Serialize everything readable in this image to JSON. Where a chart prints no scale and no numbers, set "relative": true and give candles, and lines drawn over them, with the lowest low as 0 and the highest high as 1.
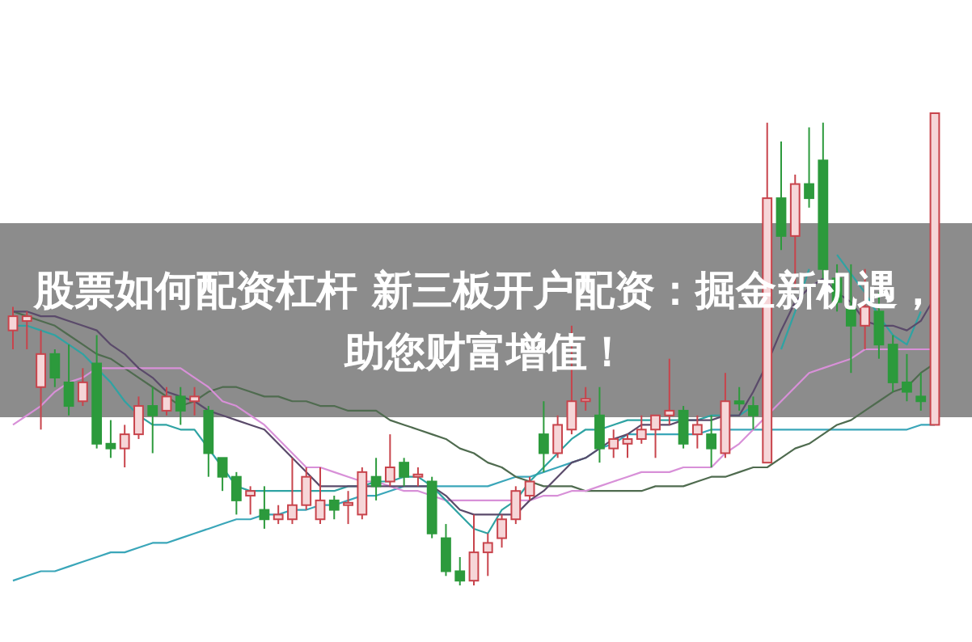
{
  "chart_data": {
    "type": "candlestick",
    "title": "股票如何配资杠杆 新三板开户配资：掘金新机遇，助您财富增值！",
    "relative": true,
    "categories": [
      null,
      null,
      null,
      null,
      null,
      null,
      null,
      null,
      null,
      null,
      null,
      null,
      null,
      null,
      null,
      null,
      null,
      null,
      null,
      null,
      null,
      null,
      null,
      null,
      null,
      null,
      null,
      null,
      null,
      null,
      null,
      null,
      null,
      null,
      null,
      null,
      null,
      null,
      null,
      null,
      null,
      null,
      null,
      null,
      null,
      null,
      null,
      null,
      null,
      null,
      null,
      null,
      null,
      null,
      null,
      null,
      null,
      null,
      null,
      null,
      null,
      null,
      null,
      null,
      null,
      null,
      null
    ],
    "ohlc": [
      [
        0.54,
        0.59,
        0.5,
        0.57
      ],
      [
        0.56,
        0.58,
        0.5,
        0.57
      ],
      [
        0.42,
        0.54,
        0.33,
        0.49
      ],
      [
        0.49,
        0.5,
        0.42,
        0.44
      ],
      [
        0.43,
        0.51,
        0.36,
        0.38
      ],
      [
        0.39,
        0.46,
        0.38,
        0.43
      ],
      [
        0.47,
        0.53,
        0.29,
        0.3
      ],
      [
        0.3,
        0.35,
        0.27,
        0.29
      ],
      [
        0.29,
        0.34,
        0.25,
        0.32
      ],
      [
        0.32,
        0.4,
        0.31,
        0.38
      ],
      [
        0.38,
        0.42,
        0.28,
        0.36
      ],
      [
        0.37,
        0.42,
        0.36,
        0.4
      ],
      [
        0.4,
        0.42,
        0.34,
        0.37
      ],
      [
        0.39,
        0.42,
        0.36,
        0.4
      ],
      [
        0.37,
        0.38,
        0.23,
        0.28
      ],
      [
        0.27,
        0.27,
        0.2,
        0.23
      ],
      [
        0.23,
        0.24,
        0.15,
        0.18
      ],
      [
        0.19,
        0.21,
        0.15,
        0.2
      ],
      [
        0.16,
        0.21,
        0.12,
        0.14
      ],
      [
        0.14,
        0.17,
        0.13,
        0.15
      ],
      [
        0.14,
        0.27,
        0.13,
        0.17
      ],
      [
        0.17,
        0.25,
        0.16,
        0.23
      ],
      [
        0.14,
        0.25,
        0.13,
        0.18
      ],
      [
        0.18,
        0.19,
        0.14,
        0.16
      ],
      [
        0.17,
        0.2,
        0.13,
        0.175
      ],
      [
        0.15,
        0.25,
        0.14,
        0.24
      ],
      [
        0.23,
        0.27,
        0.18,
        0.21
      ],
      [
        0.22,
        0.32,
        0.21,
        0.25
      ],
      [
        0.26,
        0.27,
        0.21,
        0.23
      ],
      [
        0.23,
        0.25,
        0.21,
        0.235
      ],
      [
        0.22,
        0.23,
        0.1,
        0.11
      ],
      [
        0.1,
        0.13,
        0.02,
        0.03
      ],
      [
        0.03,
        0.06,
        0,
        0.01
      ],
      [
        0.01,
        0.15,
        0,
        0.07
      ],
      [
        0.07,
        0.11,
        0.02,
        0.09
      ],
      [
        0.1,
        0.15,
        0.08,
        0.14
      ],
      [
        0.14,
        0.21,
        0.13,
        0.2
      ],
      [
        0.19,
        0.23,
        0.18,
        0.22
      ],
      [
        0.32,
        0.39,
        0.24,
        0.28
      ],
      [
        0.28,
        0.36,
        0.27,
        0.34
      ],
      [
        0.33,
        0.55,
        0.32,
        0.39
      ],
      [
        0.39,
        0.42,
        0.37,
        0.395
      ],
      [
        0.36,
        0.42,
        0.26,
        0.29
      ],
      [
        0.29,
        0.33,
        0.27,
        0.31
      ],
      [
        0.3,
        0.32,
        0.27,
        0.31
      ],
      [
        0.31,
        0.36,
        0.3,
        0.33
      ],
      [
        0.33,
        0.36,
        0.27,
        0.36
      ],
      [
        0.36,
        0.48,
        0.34,
        0.37
      ],
      [
        0.37,
        0.38,
        0.29,
        0.3
      ],
      [
        0.32,
        0.36,
        0.29,
        0.34
      ],
      [
        0.32,
        0.36,
        0.25,
        0.29
      ],
      [
        0.28,
        0.45,
        0.27,
        0.39
      ],
      [
        0.39,
        0.42,
        0.37,
        0.385
      ],
      [
        0.38,
        0.4,
        0.33,
        0.36
      ],
      [
        0.26,
        0.98,
        0.26,
        0.82
      ],
      [
        0.82,
        0.94,
        0.71,
        0.74
      ],
      [
        0.74,
        0.87,
        0.63,
        0.85
      ],
      [
        0.85,
        0.97,
        0.8,
        0.82
      ],
      [
        0.9,
        0.98,
        0.65,
        0.67
      ],
      [
        0.65,
        0.68,
        0.58,
        0.6
      ],
      [
        0.59,
        0.68,
        0.45,
        0.55
      ],
      [
        0.55,
        0.67,
        0.5,
        0.59
      ],
      [
        0.58,
        0.62,
        0.48,
        0.51
      ],
      [
        0.51,
        0.53,
        0.41,
        0.43
      ],
      [
        0.43,
        0.49,
        0.39,
        0.41
      ],
      [
        0.4,
        0.45,
        0.37,
        0.39
      ],
      [
        0.34,
        1,
        0.34,
        1
      ]
    ],
    "colors": [
      "#c8444c",
      "#c8444c",
      "#c8444c",
      "#2c9a3c",
      "#2c9a3c",
      "#c8444c",
      "#2c9a3c",
      "#2c9a3c",
      "#c8444c",
      "#c8444c",
      "#2c9a3c",
      "#c8444c",
      "#2c9a3c",
      "#c8444c",
      "#2c9a3c",
      "#2c9a3c",
      "#2c9a3c",
      "#c8444c",
      "#2c9a3c",
      "#c8444c",
      "#c8444c",
      "#c8444c",
      "#c8444c",
      "#2c9a3c",
      "#c8444c",
      "#c8444c",
      "#2c9a3c",
      "#c8444c",
      "#2c9a3c",
      "#c8444c",
      "#2c9a3c",
      "#2c9a3c",
      "#2c9a3c",
      "#c8444c",
      "#c8444c",
      "#c8444c",
      "#c8444c",
      "#c8444c",
      "#2c9a3c",
      "#c8444c",
      "#c8444c",
      "#c8444c",
      "#2c9a3c",
      "#c8444c",
      "#c8444c",
      "#c8444c",
      "#c8444c",
      "#c8444c",
      "#2c9a3c",
      "#c8444c",
      "#2c9a3c",
      "#c8444c",
      "#2c9a3c",
      "#2c9a3c",
      "#c8444c",
      "#2c9a3c",
      "#c8444c",
      "#2c9a3c",
      "#2c9a3c",
      "#2c9a3c",
      "#2c9a3c",
      "#c8444c",
      "#2c9a3c",
      "#2c9a3c",
      "#2c9a3c",
      "#2c9a3c",
      "#c8444c"
    ],
    "series": [
      {
        "type": "line",
        "color": "#3aa6b9",
        "values": [
          0.01,
          0.02,
          0.03,
          0.03,
          0.04,
          0.05,
          0.06,
          0.07,
          0.07,
          0.08,
          0.09,
          0.09,
          0.1,
          0.11,
          0.12,
          0.13,
          0.14,
          0.14,
          0.15,
          0.15,
          0.16,
          0.16,
          0.17,
          0.17,
          0.18,
          0.19,
          0.19,
          0.2,
          0.21,
          0.21,
          0.21,
          0.21,
          0.21,
          0.21,
          0.21,
          0.22,
          0.23,
          0.23,
          0.24,
          0.25,
          0.26,
          0.27,
          0.29,
          0.3,
          0.32,
          0.32,
          0.32,
          0.32,
          0.32,
          0.32,
          0.33,
          0.33,
          0.33,
          0.33,
          0.33,
          0.33,
          0.33,
          0.33,
          0.33,
          0.33,
          0.33,
          0.33,
          0.33,
          0.33,
          0.33,
          0.34,
          0.34
        ]
      },
      {
        "type": "line",
        "color": "#4f6b4f",
        "values": [
          0.58,
          0.57,
          0.56,
          0.55,
          0.53,
          0.51,
          0.49,
          0.48,
          0.46,
          0.44,
          0.42,
          0.4,
          0.38,
          0.39,
          0.41,
          0.42,
          0.42,
          0.41,
          0.4,
          0.4,
          0.39,
          0.39,
          0.38,
          0.38,
          0.37,
          0.37,
          0.37,
          0.35,
          0.34,
          0.33,
          0.32,
          0.31,
          0.29,
          0.28,
          0.26,
          0.25,
          0.23,
          0.22,
          0.21,
          0.21,
          0.21,
          0.2,
          0.2,
          0.2,
          0.2,
          0.2,
          0.21,
          0.21,
          0.21,
          0.22,
          0.23,
          0.23,
          0.24,
          0.25,
          0.25,
          0.27,
          0.29,
          0.3,
          0.32,
          0.34,
          0.35,
          0.37,
          0.39,
          0.41,
          0.42,
          0.45,
          0.47
        ]
      },
      {
        "type": "line",
        "color": "#d890d8",
        "values": [
          0.34,
          0.36,
          0.38,
          0.41,
          0.43,
          0.44,
          0.46,
          0.46,
          0.46,
          0.46,
          0.46,
          0.46,
          0.46,
          0.44,
          0.42,
          0.39,
          0.38,
          0.36,
          0.34,
          0.31,
          0.28,
          0.25,
          0.25,
          0.24,
          0.23,
          0.22,
          0.22,
          0.21,
          0.2,
          0.2,
          0.19,
          0.18,
          0.18,
          0.18,
          0.18,
          0.18,
          0.18,
          0.18,
          0.19,
          0.19,
          0.2,
          0.2,
          0.21,
          0.22,
          0.23,
          0.24,
          0.24,
          0.24,
          0.25,
          0.25,
          0.25,
          0.28,
          0.3,
          0.33,
          0.36,
          0.39,
          0.42,
          0.45,
          0.46,
          0.47,
          0.48,
          0.5,
          0.5,
          0.5,
          0.5,
          0.5,
          0.5
        ]
      },
      {
        "type": "line",
        "color": "#2fa3a3",
        "values": [
          0.55,
          0.55,
          0.54,
          0.53,
          0.51,
          0.49,
          0.46,
          0.43,
          0.39,
          0.36,
          0.34,
          0.34,
          0.33,
          0.33,
          0.29,
          0.25,
          0.21,
          0.2,
          0.2,
          0.2,
          0.2,
          0.2,
          0.2,
          0.2,
          0.21,
          0.21,
          0.22,
          0.22,
          0.23,
          0.23,
          0.21,
          0.18,
          0.15,
          0.12,
          0.11,
          0.16,
          0.18,
          0.22,
          0.25,
          0.28,
          0.31,
          0.33,
          0.33,
          0.34,
          0.35,
          0.35,
          0.35,
          0.35,
          0.35,
          0.35,
          0.36,
          0.36,
          0.36,
          0.38,
          null,
          0.5,
          0.58,
          0.67,
          null,
          0.7,
          0.66,
          0.62,
          0.57,
          0.53,
          0.51,
          0.58,
          null
        ]
      },
      {
        "type": "line",
        "color": "#5a4a6a",
        "values": [
          0.58,
          0.58,
          0.57,
          0.57,
          0.56,
          0.55,
          0.54,
          0.51,
          0.49,
          0.46,
          0.44,
          0.41,
          0.4,
          0.39,
          0.37,
          0.36,
          0.35,
          0.34,
          0.33,
          0.3,
          0.27,
          0.24,
          0.21,
          0.21,
          0.21,
          0.21,
          0.21,
          0.21,
          0.21,
          0.21,
          0.21,
          0.19,
          0.16,
          0.15,
          0.15,
          0.15,
          0.15,
          0.18,
          0.2,
          0.23,
          0.26,
          0.27,
          0.29,
          0.31,
          0.32,
          0.34,
          0.34,
          0.34,
          0.35,
          0.35,
          0.35,
          0.36,
          0.36,
          0.41,
          0.47,
          0.54,
          0.6,
          0.63,
          0.65,
          0.62,
          0.6,
          0.56,
          0.55,
          0.55,
          0.54,
          0.56,
          0.61
        ]
      }
    ]
  }
}
